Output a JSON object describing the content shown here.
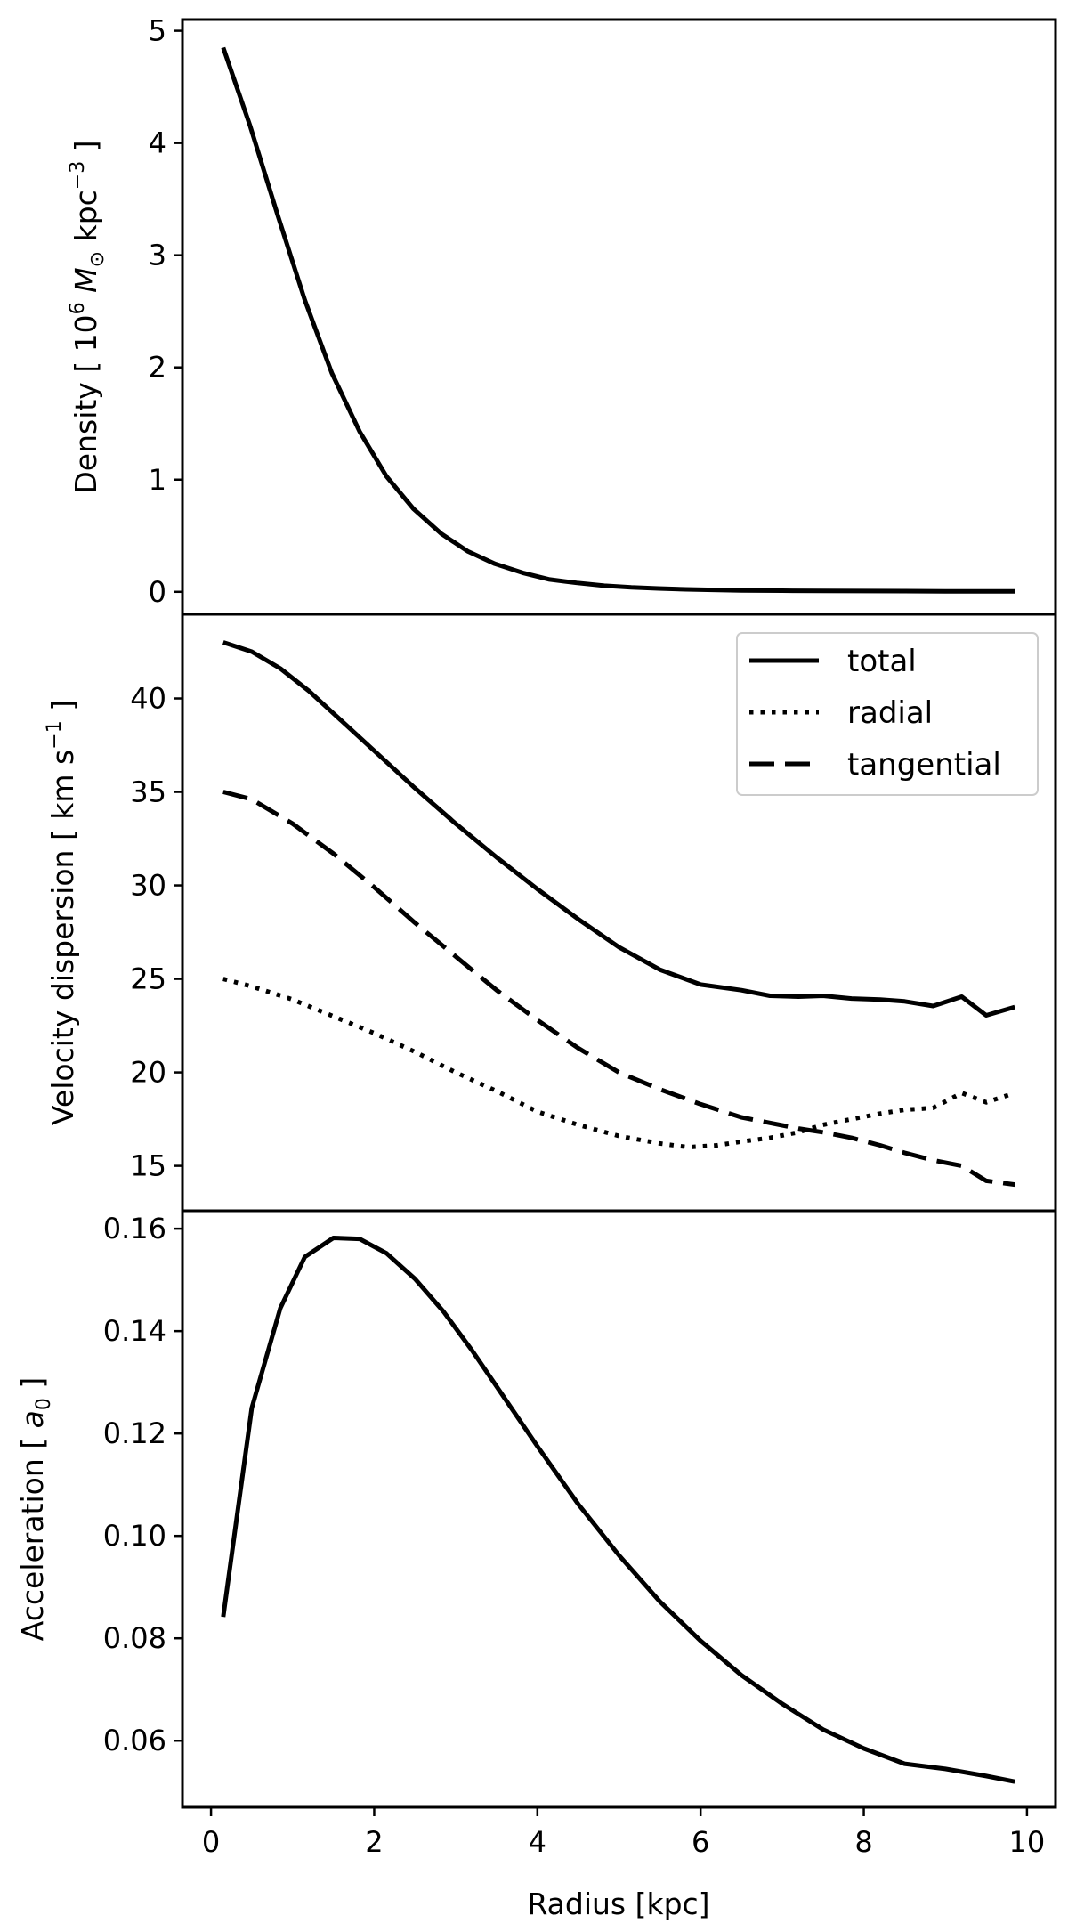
{
  "chart_data": [
    {
      "type": "line",
      "panel": "top",
      "ylabel_parts": {
        "prefix": "Density  [ 10",
        "exp1": "6",
        "sym": "M",
        "sub": "⊙",
        "mid": " kpc",
        "exp2": "−3",
        "suffix": " ]"
      },
      "ylim": [
        -0.2,
        5.1
      ],
      "yticks": [
        0,
        1,
        2,
        3,
        4,
        5
      ],
      "ytick_labels": [
        "0",
        "1",
        "2",
        "3",
        "4",
        "5"
      ],
      "series": [
        {
          "name": "density",
          "style": "solid",
          "x": [
            0.15,
            0.48,
            0.82,
            1.15,
            1.48,
            1.82,
            2.15,
            2.48,
            2.82,
            3.15,
            3.48,
            3.82,
            4.15,
            4.48,
            4.82,
            5.15,
            5.48,
            5.82,
            6.15,
            6.5,
            7.0,
            7.5,
            8.0,
            8.5,
            9.0,
            9.5,
            9.85
          ],
          "y": [
            4.85,
            4.15,
            3.35,
            2.6,
            1.95,
            1.43,
            1.03,
            0.74,
            0.52,
            0.36,
            0.25,
            0.17,
            0.11,
            0.08,
            0.055,
            0.04,
            0.03,
            0.022,
            0.017,
            0.013,
            0.01,
            0.008,
            0.007,
            0.006,
            0.005,
            0.005,
            0.005
          ]
        }
      ]
    },
    {
      "type": "line",
      "panel": "middle",
      "ylabel_parts": {
        "prefix": "Velocity dispersion  [ km s",
        "exp": "−1",
        "suffix": " ]"
      },
      "ylim": [
        12.6,
        44.5
      ],
      "yticks": [
        15,
        20,
        25,
        30,
        35,
        40
      ],
      "ytick_labels": [
        "15",
        "20",
        "25",
        "30",
        "35",
        "40"
      ],
      "legend": {
        "placement": "top-right",
        "entries": [
          "total",
          "radial",
          "tangential"
        ]
      },
      "series": [
        {
          "name": "total",
          "style": "solid",
          "x": [
            0.15,
            0.5,
            0.85,
            1.2,
            1.5,
            2.0,
            2.5,
            3.0,
            3.5,
            4.0,
            4.5,
            5.0,
            5.5,
            6.0,
            6.5,
            6.85,
            7.2,
            7.5,
            7.85,
            8.2,
            8.5,
            8.85,
            9.2,
            9.5,
            9.85
          ],
          "y": [
            43.0,
            42.5,
            41.6,
            40.4,
            39.2,
            37.2,
            35.2,
            33.3,
            31.5,
            29.8,
            28.2,
            26.7,
            25.5,
            24.7,
            24.4,
            24.1,
            24.05,
            24.1,
            23.95,
            23.9,
            23.8,
            23.55,
            24.05,
            23.05,
            23.5
          ]
        },
        {
          "name": "radial",
          "style": "dotted",
          "x": [
            0.15,
            0.5,
            1.0,
            1.5,
            2.0,
            2.5,
            3.0,
            3.5,
            4.0,
            4.5,
            5.0,
            5.5,
            5.85,
            6.2,
            6.5,
            6.85,
            7.2,
            7.5,
            7.85,
            8.2,
            8.5,
            8.85,
            9.2,
            9.5,
            9.85
          ],
          "y": [
            25.0,
            24.6,
            23.9,
            23.0,
            22.1,
            21.1,
            20.0,
            19.0,
            17.9,
            17.2,
            16.6,
            16.2,
            16.0,
            16.1,
            16.3,
            16.5,
            16.8,
            17.2,
            17.5,
            17.8,
            18.0,
            18.1,
            18.9,
            18.4,
            18.9
          ]
        },
        {
          "name": "tangential",
          "style": "dashed",
          "x": [
            0.15,
            0.5,
            1.0,
            1.5,
            2.0,
            2.5,
            3.0,
            3.5,
            4.0,
            4.5,
            5.0,
            5.5,
            6.0,
            6.5,
            6.85,
            7.2,
            7.5,
            7.85,
            8.2,
            8.5,
            8.85,
            9.2,
            9.5,
            9.85
          ],
          "y": [
            35.0,
            34.6,
            33.3,
            31.7,
            29.9,
            28.0,
            26.2,
            24.4,
            22.8,
            21.3,
            20.0,
            19.1,
            18.3,
            17.6,
            17.3,
            17.0,
            16.8,
            16.5,
            16.1,
            15.7,
            15.3,
            15.0,
            14.2,
            14.0
          ]
        }
      ]
    },
    {
      "type": "line",
      "panel": "bottom",
      "ylabel_parts": {
        "prefix": "Acceleration  [ ",
        "sym": "a",
        "sub": "0",
        "suffix": " ]"
      },
      "xlabel": "Radius [kpc]",
      "xlim": [
        -0.35,
        10.35
      ],
      "xticks": [
        0,
        2,
        4,
        6,
        8,
        10
      ],
      "xtick_labels": [
        "0",
        "2",
        "4",
        "6",
        "8",
        "10"
      ],
      "ylim": [
        0.047,
        0.1635
      ],
      "yticks": [
        0.06,
        0.08,
        0.1,
        0.12,
        0.14,
        0.16
      ],
      "ytick_labels": [
        "0.06",
        "0.08",
        "0.10",
        "0.12",
        "0.14",
        "0.16"
      ],
      "series": [
        {
          "name": "acceleration",
          "style": "solid",
          "x": [
            0.15,
            0.5,
            0.85,
            1.15,
            1.5,
            1.82,
            2.15,
            2.5,
            2.85,
            3.2,
            3.5,
            4.0,
            4.5,
            5.0,
            5.5,
            6.0,
            6.5,
            7.0,
            7.5,
            8.0,
            8.5,
            9.0,
            9.5,
            9.85
          ],
          "y": [
            0.0842,
            0.125,
            0.1445,
            0.1545,
            0.1582,
            0.158,
            0.1552,
            0.1502,
            0.1438,
            0.1362,
            0.1292,
            0.1175,
            0.1062,
            0.0962,
            0.0872,
            0.0795,
            0.0728,
            0.0672,
            0.0622,
            0.0585,
            0.0555,
            0.0545,
            0.0531,
            0.052
          ]
        }
      ]
    }
  ]
}
